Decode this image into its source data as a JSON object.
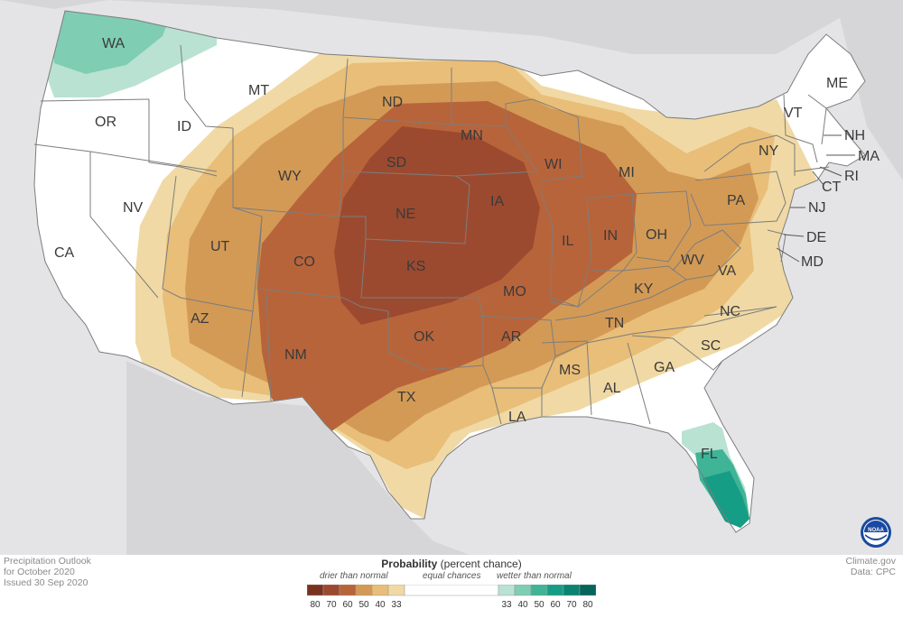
{
  "map": {
    "state_labels": {
      "WA": "WA",
      "OR": "OR",
      "CA": "CA",
      "NV": "NV",
      "ID": "ID",
      "MT": "MT",
      "WY": "WY",
      "UT": "UT",
      "AZ": "AZ",
      "CO": "CO",
      "NM": "NM",
      "ND": "ND",
      "SD": "SD",
      "NE": "NE",
      "KS": "KS",
      "OK": "OK",
      "TX": "TX",
      "MN": "MN",
      "IA": "IA",
      "MO": "MO",
      "AR": "AR",
      "LA": "LA",
      "WI": "WI",
      "IL": "IL",
      "MI": "MI",
      "IN": "IN",
      "OH": "OH",
      "KY": "KY",
      "TN": "TN",
      "MS": "MS",
      "AL": "AL",
      "GA": "GA",
      "FL": "FL",
      "SC": "SC",
      "NC": "NC",
      "VA": "VA",
      "WV": "WV",
      "PA": "PA",
      "NY": "NY",
      "NJ": "NJ",
      "DE": "DE",
      "MD": "MD",
      "VT": "VT",
      "NH": "NH",
      "ME": "ME",
      "MA": "MA",
      "CT": "CT",
      "RI": "RI"
    },
    "colors": {
      "dry_80": "#7a3220",
      "dry_70": "#9b4a30",
      "dry_60": "#b8643a",
      "dry_50": "#d39a56",
      "dry_40": "#e8be78",
      "dry_33": "#f0d9a4",
      "equal": "#ffffff",
      "wet_33": "#b9e2d2",
      "wet_40": "#7fcdb3",
      "wet_50": "#3fb497",
      "wet_60": "#169d86",
      "wet_70": "#0a8373",
      "wet_80": "#06645a",
      "background": "#e4e4e6",
      "border": "#7d7d7d"
    }
  },
  "footer": {
    "left_line1": "Precipitation Outlook",
    "left_line2": "for October 2020",
    "left_line3": "Issued 30 Sep 2020",
    "right_line1": "Climate.gov",
    "right_line2": "Data: CPC"
  },
  "legend": {
    "title_bold": "Probability",
    "title_rest": " (percent chance)",
    "drier": "drier than normal",
    "equal": "equal chances",
    "wetter": "wetter than normal",
    "dry_ticks": [
      "80",
      "70",
      "60",
      "50",
      "40",
      "33"
    ],
    "wet_ticks": [
      "33",
      "40",
      "50",
      "60",
      "70",
      "80"
    ]
  },
  "logo": {
    "text": "NOAA",
    "icon": "noaa-logo-icon"
  }
}
